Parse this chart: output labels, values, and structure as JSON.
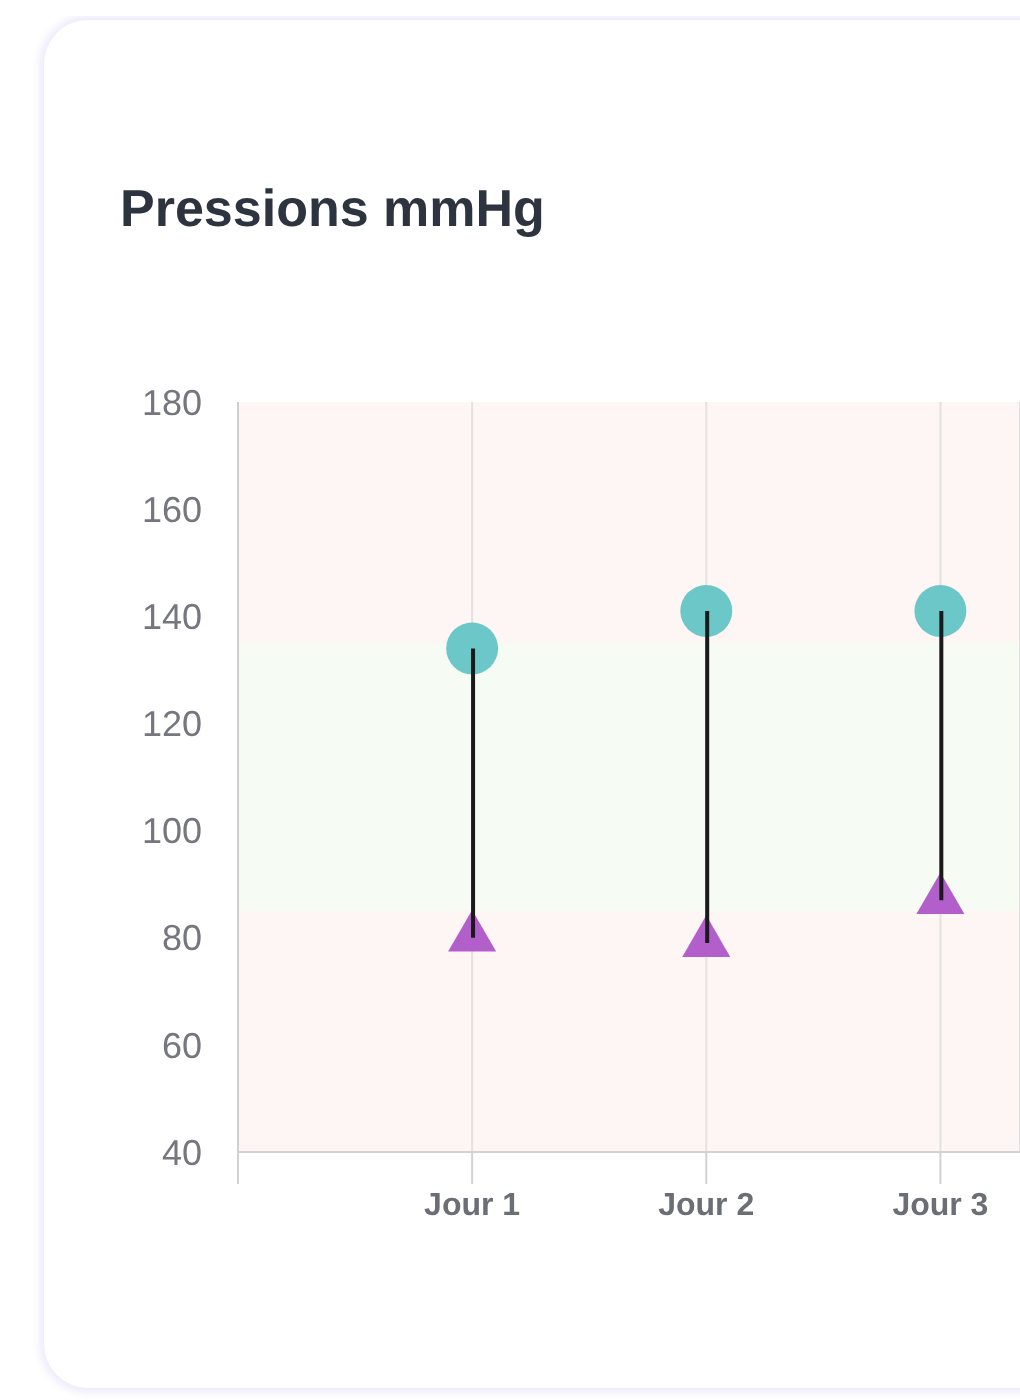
{
  "chart_data": {
    "type": "scatter",
    "title": "Pressions mmHg",
    "categories": [
      "Jour 1",
      "Jour 2",
      "Jour 3"
    ],
    "series": [
      {
        "type": "bar",
        "base": [
          80,
          79,
          87
        ],
        "values": [
          54,
          62,
          54
        ],
        "color": "#1a1a1a"
      },
      {
        "marker": "circle",
        "color": "#6cc8c8",
        "values": [
          134,
          141,
          141
        ]
      },
      {
        "marker": "triangle",
        "color": "#b35fcb",
        "values": [
          80,
          79,
          87
        ]
      }
    ],
    "ylim": [
      40,
      180
    ],
    "yticks": [
      40,
      60,
      80,
      100,
      120,
      140,
      160,
      180
    ],
    "grid": "x",
    "bands": [
      {
        "axis": "y",
        "from": 40,
        "to": 85,
        "color": "#fdf6f4"
      },
      {
        "axis": "y",
        "from": 85,
        "to": 135,
        "color": "#f6fbf4"
      },
      {
        "axis": "y",
        "from": 135,
        "to": 180,
        "color": "#fdf6f4"
      }
    ]
  }
}
